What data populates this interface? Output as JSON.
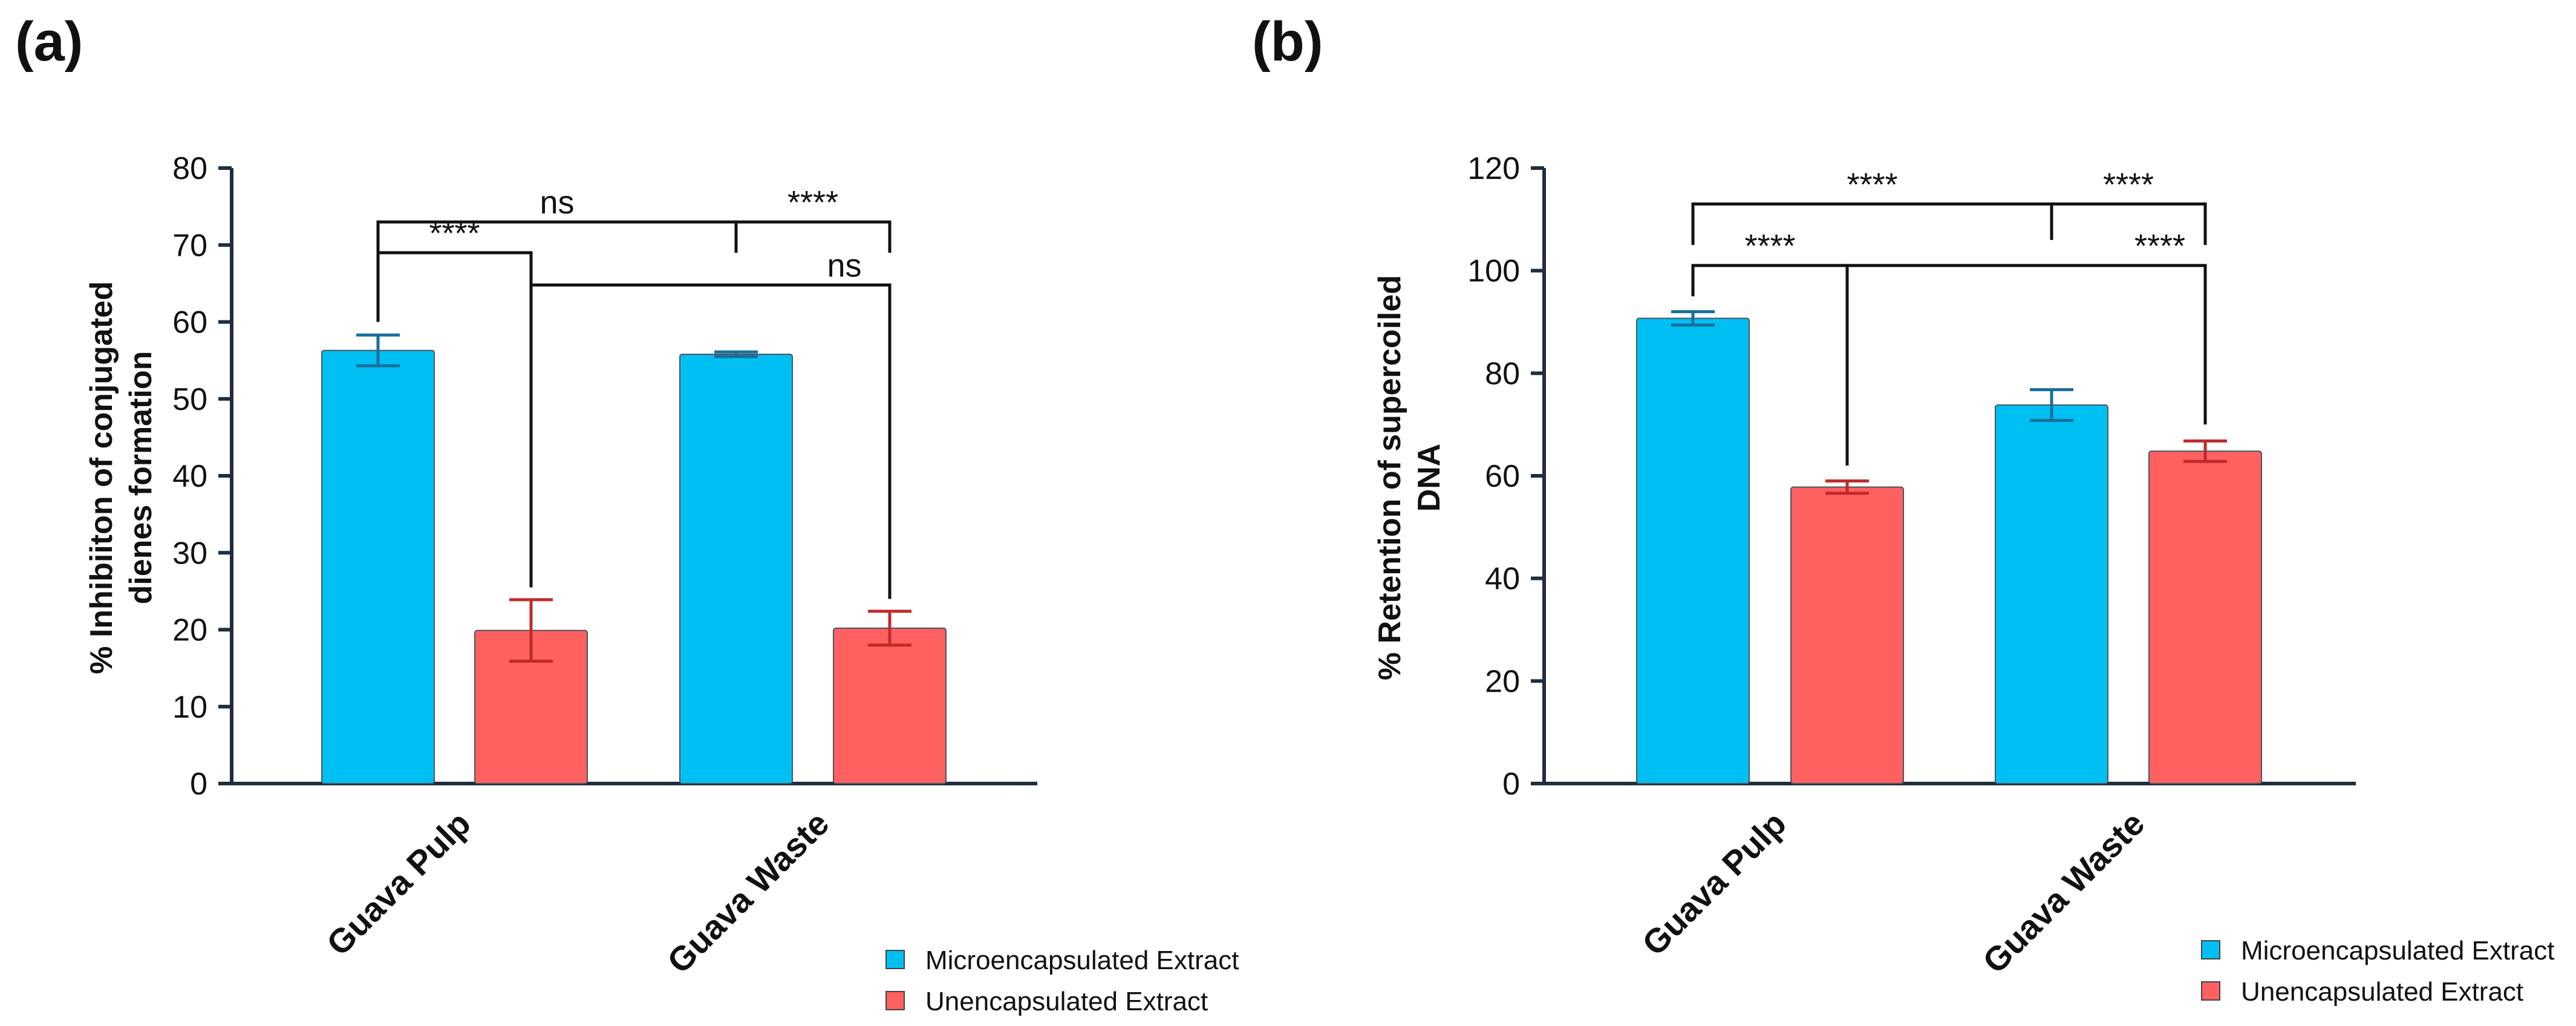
{
  "chart_data": [
    {
      "panel": "(a)",
      "type": "bar",
      "categories": [
        "Guava Pulp",
        "Guava Waste"
      ],
      "series": [
        {
          "name": "Microencapsulated Extract",
          "color": "#00bff3",
          "values": [
            56.3,
            55.8
          ],
          "errors": [
            2.0,
            0.3
          ]
        },
        {
          "name": "Unencapsulated Extract",
          "color": "#ff6060",
          "values": [
            19.9,
            20.2
          ],
          "errors": [
            4.0,
            2.2
          ]
        }
      ],
      "ylabel_lines": [
        "% Inhibiiton of conjugated",
        "dienes formation"
      ],
      "ylim": [
        0,
        80
      ],
      "yticks": [
        0,
        10,
        20,
        30,
        40,
        50,
        60,
        70,
        80
      ],
      "yticklabels": [
        "0",
        "10",
        "20",
        "30",
        "40",
        "50",
        "60",
        "70",
        "80"
      ],
      "significance": [
        {
          "label": "****",
          "from": [
            0,
            0
          ],
          "to": [
            0,
            1
          ],
          "level": 69,
          "ends": [
            60,
            60
          ],
          "label_pos": "center"
        },
        {
          "label": "ns",
          "from": [
            0,
            0
          ],
          "to": [
            1,
            0
          ],
          "level": 73,
          "ends": [
            69,
            69
          ],
          "label_pos": "center"
        },
        {
          "label": "****",
          "from": [
            1,
            0
          ],
          "to": [
            1,
            1
          ],
          "level": 73,
          "ends": [
            69,
            69
          ],
          "label_pos": "center"
        },
        {
          "label": "ns",
          "from": [
            0,
            1
          ],
          "to": [
            1,
            1
          ],
          "level": 64.8,
          "ends": [
            25.5,
            24
          ],
          "label_pos": "left"
        }
      ],
      "legend": [
        "Microencapsulated Extract",
        "Unencapsulated Extract"
      ]
    },
    {
      "panel": "(b)",
      "type": "bar",
      "categories": [
        "Guava Pulp",
        "Guava Waste"
      ],
      "series": [
        {
          "name": "Microencapsulated Extract",
          "color": "#00bff3",
          "values": [
            90.7,
            73.8
          ],
          "errors": [
            1.3,
            3.0
          ]
        },
        {
          "name": "Unencapsulated Extract",
          "color": "#ff6060",
          "values": [
            57.8,
            64.8
          ],
          "errors": [
            1.2,
            2.0
          ]
        }
      ],
      "ylabel_lines": [
        "% Retention of supercoiled",
        "DNA"
      ],
      "ylim": [
        0,
        120
      ],
      "yticks": [
        0,
        20,
        40,
        60,
        80,
        100,
        120
      ],
      "yticklabels": [
        "0",
        "20",
        "40",
        "60",
        "80",
        "100",
        "120"
      ],
      "significance": [
        {
          "label": "****",
          "from": [
            0,
            0
          ],
          "to": [
            1,
            0
          ],
          "level": 113,
          "ends": [
            105,
            106
          ],
          "label_pos": "center"
        },
        {
          "label": "****",
          "from": [
            1,
            0
          ],
          "to": [
            1,
            1
          ],
          "level": 113,
          "ends": [
            106,
            105
          ],
          "label_pos": "center"
        },
        {
          "label": "****",
          "from": [
            0,
            0
          ],
          "to": [
            0,
            1
          ],
          "level": 101,
          "ends": [
            95,
            62
          ],
          "label_pos": "center"
        },
        {
          "label": "****",
          "from": [
            0,
            1
          ],
          "to": [
            1,
            1
          ],
          "level": 101,
          "ends": [
            62,
            70
          ],
          "label_pos": "left"
        }
      ],
      "legend": [
        "Microencapsulated Extract",
        "Unencapsulated Extract"
      ]
    }
  ]
}
